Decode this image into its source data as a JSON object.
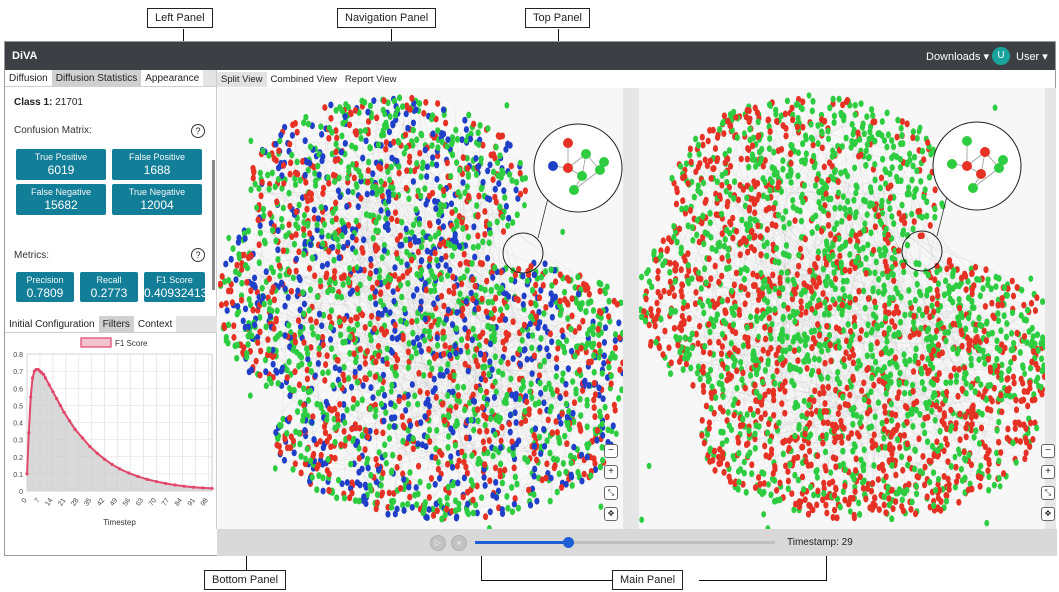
{
  "callouts": {
    "left_panel": "Left Panel",
    "navigation_panel": "Navigation Panel",
    "top_panel": "Top Panel",
    "bottom_panel": "Bottom Panel",
    "main_panel": "Main Panel"
  },
  "navbar": {
    "brand": "DiVA",
    "downloads": "Downloads ▾",
    "avatar_letter": "U",
    "user": "User ▾"
  },
  "left_tabs": [
    {
      "label": "Diffusion",
      "state": "active"
    },
    {
      "label": "Diffusion Statistics",
      "state": "dim"
    },
    {
      "label": "Appearance",
      "state": "active"
    }
  ],
  "class_info": {
    "label": "Class 1:",
    "value": "21701"
  },
  "confusion": {
    "title": "Confusion Matrix:",
    "help": "?",
    "tp_label": "True Positive",
    "tp": "6019",
    "fp_label": "False Positive",
    "fp": "1688",
    "fn_label": "False Negative",
    "fn": "15682",
    "tn_label": "True Negative",
    "tn": "12004"
  },
  "metrics": {
    "title": "Metrics:",
    "help": "?",
    "precision_label": "Precision",
    "precision": "0.7809",
    "recall_label": "Recall",
    "recall": "0.2773",
    "f1_label": "F1 Score",
    "f1": "0.40932413"
  },
  "sub_tabs": [
    {
      "label": "Initial Configuration",
      "state": "active"
    },
    {
      "label": "Filters",
      "state": "dim"
    },
    {
      "label": "Context",
      "state": "active"
    }
  ],
  "view_tabs": [
    {
      "label": "Split View",
      "state": "active"
    },
    {
      "label": "Combined View",
      "state": "normal"
    },
    {
      "label": "Report View",
      "state": "normal"
    }
  ],
  "zoom_icons": [
    "zoom-out-icon",
    "zoom-in-icon",
    "collapse-icon",
    "move-icon"
  ],
  "playback": {
    "play_icon": "play-icon",
    "step_icon": "fast-forward-icon",
    "timestamp_label": "Timestamp:",
    "timestamp_value": "29",
    "progress": 0.31
  },
  "colors": {
    "navbar": "#3c3f43",
    "tile": "#137e97",
    "red": "#e53224",
    "green": "#2ecc40",
    "blue": "#1f3fc8",
    "slider": "#1e5fd6",
    "curve": "#e0476a"
  },
  "chart_data": {
    "type": "line",
    "legend": "F1 Score",
    "xlabel": "Timestep",
    "ylabel": "",
    "ylim": [
      0,
      0.8
    ],
    "yticks": [
      "0",
      "0.1",
      "0.2",
      "0.3",
      "0.4",
      "0.5",
      "0.6",
      "0.7",
      "0.8"
    ],
    "xticks": [
      "0",
      "7",
      "14",
      "21",
      "28",
      "35",
      "42",
      "49",
      "56",
      "63",
      "70",
      "77",
      "84",
      "91",
      "98"
    ],
    "xlim": [
      0,
      100
    ],
    "grid": true,
    "series": [
      {
        "name": "F1 Score",
        "x": [
          0,
          1,
          2,
          3,
          4,
          5,
          6,
          7,
          8,
          9,
          10,
          12,
          14,
          16,
          18,
          20,
          23,
          26,
          30,
          34,
          38,
          42,
          46,
          50,
          55,
          60,
          65,
          70,
          75,
          80,
          85,
          90,
          95,
          100
        ],
        "y": [
          0.1,
          0.34,
          0.55,
          0.66,
          0.7,
          0.71,
          0.71,
          0.7,
          0.69,
          0.68,
          0.66,
          0.62,
          0.58,
          0.54,
          0.5,
          0.46,
          0.41,
          0.36,
          0.31,
          0.26,
          0.22,
          0.185,
          0.155,
          0.13,
          0.105,
          0.085,
          0.068,
          0.055,
          0.044,
          0.035,
          0.028,
          0.022,
          0.018,
          0.015
        ]
      }
    ]
  }
}
